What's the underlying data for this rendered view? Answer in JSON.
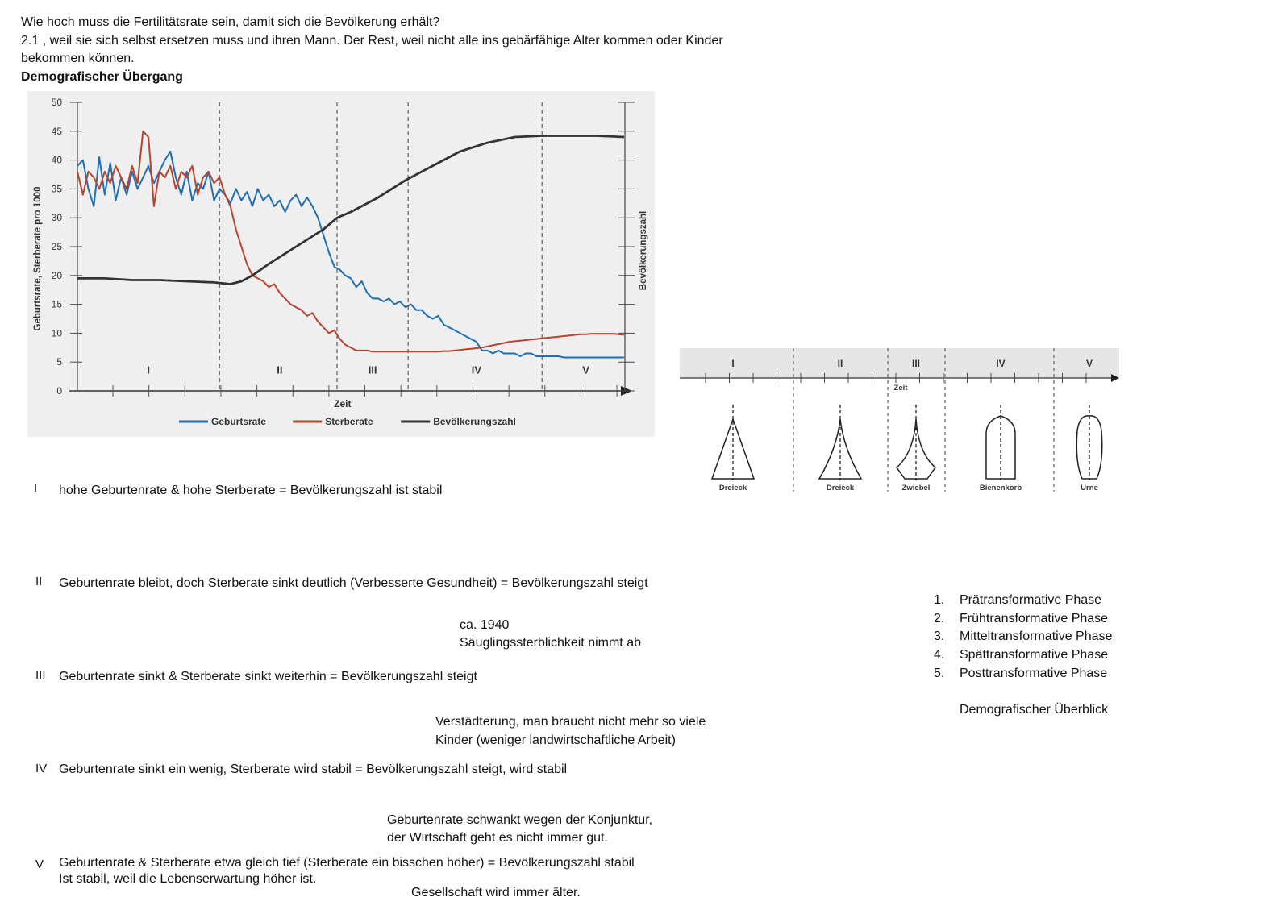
{
  "header": {
    "question": "Wie hoch muss die Fertilitätsrate sein, damit sich die Bevölkerung erhält?",
    "answer_line1": "2.1 , weil sie sich selbst ersetzen muss und ihren Mann. Der Rest, weil nicht alle ins gebärfähige Alter kommen oder Kinder",
    "answer_line2": "bekommen können.",
    "section_title": "Demografischer Übergang"
  },
  "chart_data": {
    "type": "line",
    "title": "",
    "xlabel": "Zeit",
    "ylabel": "Geburtsrate, Sterberate pro 1000",
    "y2label": "Bevölkerungszahl",
    "ylim": [
      0,
      50
    ],
    "yticks": [
      "0",
      "5",
      "10",
      "15",
      "20",
      "25",
      "30",
      "35",
      "40",
      "45",
      "50"
    ],
    "xlim": [
      0,
      100
    ],
    "phase_boundaries": [
      26,
      47.5,
      60.5,
      85
    ],
    "phase_labels": [
      {
        "label": "I",
        "x": 13
      },
      {
        "label": "II",
        "x": 37
      },
      {
        "label": "III",
        "x": 54
      },
      {
        "label": "IV",
        "x": 73
      },
      {
        "label": "V",
        "x": 93
      }
    ],
    "legend_position": "bottom",
    "grid": false,
    "series": [
      {
        "name": "Geburtsrate",
        "color": "#1f6fb2",
        "x": [
          0,
          1,
          2,
          3,
          4,
          5,
          6,
          7,
          8,
          9,
          10,
          11,
          12,
          13,
          14,
          15,
          16,
          17,
          18,
          19,
          20,
          21,
          22,
          23,
          24,
          25,
          26,
          27,
          28,
          29,
          30,
          31,
          32,
          33,
          34,
          35,
          36,
          37,
          38,
          39,
          40,
          41,
          42,
          43,
          44,
          45,
          46,
          47,
          48,
          49,
          50,
          51,
          52,
          53,
          54,
          55,
          56,
          57,
          58,
          59,
          60,
          61,
          62,
          63,
          64,
          65,
          66,
          67,
          68,
          69,
          70,
          71,
          72,
          73,
          74,
          75,
          76,
          77,
          78,
          79,
          80,
          81,
          82,
          83,
          84,
          85,
          86,
          87,
          88,
          89,
          90,
          91,
          92,
          93,
          94,
          95,
          96,
          97,
          98,
          99,
          100
        ],
        "y": [
          39,
          40,
          35,
          32,
          40.5,
          34,
          39.5,
          33,
          37,
          34,
          38,
          35,
          37,
          39,
          36,
          38,
          40,
          41.5,
          37,
          34,
          38,
          33,
          36,
          35,
          38,
          33,
          35,
          34,
          32.5,
          35,
          33,
          34.5,
          32,
          35,
          33,
          34,
          32,
          33,
          31,
          33,
          34,
          32,
          33.5,
          32,
          30,
          27,
          24,
          21.5,
          21,
          20,
          19.5,
          18,
          19,
          17,
          16,
          16,
          15.5,
          16,
          15,
          15.5,
          14.5,
          15,
          14,
          14,
          13,
          12.5,
          13,
          11.5,
          11,
          10.5,
          10,
          9.5,
          9,
          8.5,
          7,
          7,
          6.5,
          7,
          6.5,
          6.5,
          6.5,
          6,
          6.5,
          6.5,
          6,
          6,
          6,
          6,
          6,
          5.8,
          5.8,
          5.8,
          5.8,
          5.8,
          5.8,
          5.8,
          5.8,
          5.8,
          5.8,
          5.8,
          5.8
        ]
      },
      {
        "name": "Sterberate",
        "color": "#b5452e",
        "x": [
          0,
          1,
          2,
          3,
          4,
          5,
          6,
          7,
          8,
          9,
          10,
          11,
          12,
          13,
          14,
          15,
          16,
          17,
          18,
          19,
          20,
          21,
          22,
          23,
          24,
          25,
          26,
          27,
          28,
          29,
          30,
          31,
          32,
          33,
          34,
          35,
          36,
          37,
          38,
          39,
          40,
          41,
          42,
          43,
          44,
          45,
          46,
          47,
          48,
          49,
          50,
          51,
          52,
          53,
          54,
          55,
          56,
          57,
          58,
          59,
          60,
          61,
          62,
          63,
          64,
          65,
          66,
          67,
          68,
          69,
          70,
          71,
          72,
          73,
          74,
          75,
          76,
          77,
          78,
          79,
          80,
          81,
          82,
          83,
          84,
          85,
          86,
          87,
          88,
          89,
          90,
          91,
          92,
          93,
          94,
          95,
          96,
          97,
          98,
          99,
          100
        ],
        "y": [
          38,
          34,
          38,
          37,
          35,
          38,
          36,
          39,
          37,
          35,
          39,
          36,
          45,
          44,
          32,
          38,
          37,
          39,
          35,
          38,
          37,
          39,
          34,
          37,
          38,
          36,
          37,
          34,
          32,
          28,
          25,
          22,
          20,
          19.5,
          19,
          18,
          18.5,
          17,
          16,
          15,
          14.5,
          14,
          13,
          13.5,
          12,
          11,
          10,
          10.5,
          9,
          8,
          7.5,
          7,
          7,
          7,
          6.8,
          6.8,
          6.8,
          6.8,
          6.8,
          6.8,
          6.8,
          6.8,
          6.8,
          6.8,
          6.8,
          6.8,
          6.8,
          6.9,
          6.9,
          7,
          7.1,
          7.2,
          7.3,
          7.4,
          7.5,
          7.7,
          7.9,
          8.1,
          8.3,
          8.5,
          8.6,
          8.7,
          8.8,
          8.9,
          9,
          9.1,
          9.2,
          9.3,
          9.4,
          9.5,
          9.6,
          9.7,
          9.8,
          9.8,
          9.9,
          9.9,
          9.9,
          9.9,
          9.9,
          9.8,
          9.7
        ]
      },
      {
        "name": "Bevölkerungszahl",
        "color": "#333333",
        "x": [
          0,
          5,
          10,
          15,
          20,
          25,
          26,
          28,
          30,
          32,
          35,
          40,
          45,
          47.5,
          50,
          55,
          60,
          65,
          70,
          75,
          80,
          85,
          90,
          95,
          100
        ],
        "y": [
          19.5,
          19.5,
          19.2,
          19.2,
          19,
          18.8,
          18.7,
          18.5,
          19,
          20,
          22,
          25,
          28,
          30,
          31,
          33.5,
          36.5,
          39,
          41.5,
          43,
          44,
          44.2,
          44.2,
          44.2,
          44
        ]
      }
    ]
  },
  "pyramid_strip": {
    "phases": [
      "I",
      "II",
      "III",
      "IV",
      "V"
    ],
    "axis_label": "Zeit",
    "shapes": [
      "Dreieck",
      "Dreieck",
      "Zwiebel",
      "Bienenkorb",
      "Urne"
    ]
  },
  "phases_text": [
    {
      "numeral": "I",
      "text": "hohe Geburtenrate & hohe Sterberate = Bevölkerungszahl ist stabil"
    },
    {
      "numeral": "II",
      "text": "Geburtenrate bleibt, doch Sterberate sinkt deutlich (Verbesserte Gesundheit) = Bevölkerungszahl steigt"
    },
    {
      "numeral": "III",
      "text": "Geburtenrate sinkt & Sterberate sinkt weiterhin = Bevölkerungszahl steigt"
    },
    {
      "numeral": "IV",
      "text": "Geburtenrate sinkt ein wenig, Sterberate wird stabil = Bevölkerungszahl steigt, wird stabil"
    },
    {
      "numeral": "V",
      "text": "Geburtenrate & Sterberate etwa gleich tief (Sterberate ein bisschen höher) = Bevölkerungszahl stabil",
      "text2": "Ist stabil, weil die Lebenserwartung höher ist."
    }
  ],
  "notes": {
    "note1_line1": "ca. 1940",
    "note1_line2": "Säuglingssterblichkeit nimmt ab",
    "note2_line1": "Verstädterung, man braucht nicht mehr so viele",
    "note2_line2": "Kinder (weniger landwirtschaftliche Arbeit)",
    "note3_line1": "Geburtenrate schwankt wegen der Konjunktur,",
    "note3_line2": "der Wirtschaft geht es nicht immer gut.",
    "note4": "Gesellschaft wird immer älter."
  },
  "phase_list": {
    "items": [
      {
        "num": "1.",
        "label": "Prätransformative Phase"
      },
      {
        "num": "2.",
        "label": "Frühtransformative Phase"
      },
      {
        "num": "3.",
        "label": "Mitteltransformative Phase"
      },
      {
        "num": "4.",
        "label": "Spättransformative Phase"
      },
      {
        "num": "5.",
        "label": "Posttransformative Phase"
      }
    ],
    "footer": "Demografischer Überblick"
  }
}
